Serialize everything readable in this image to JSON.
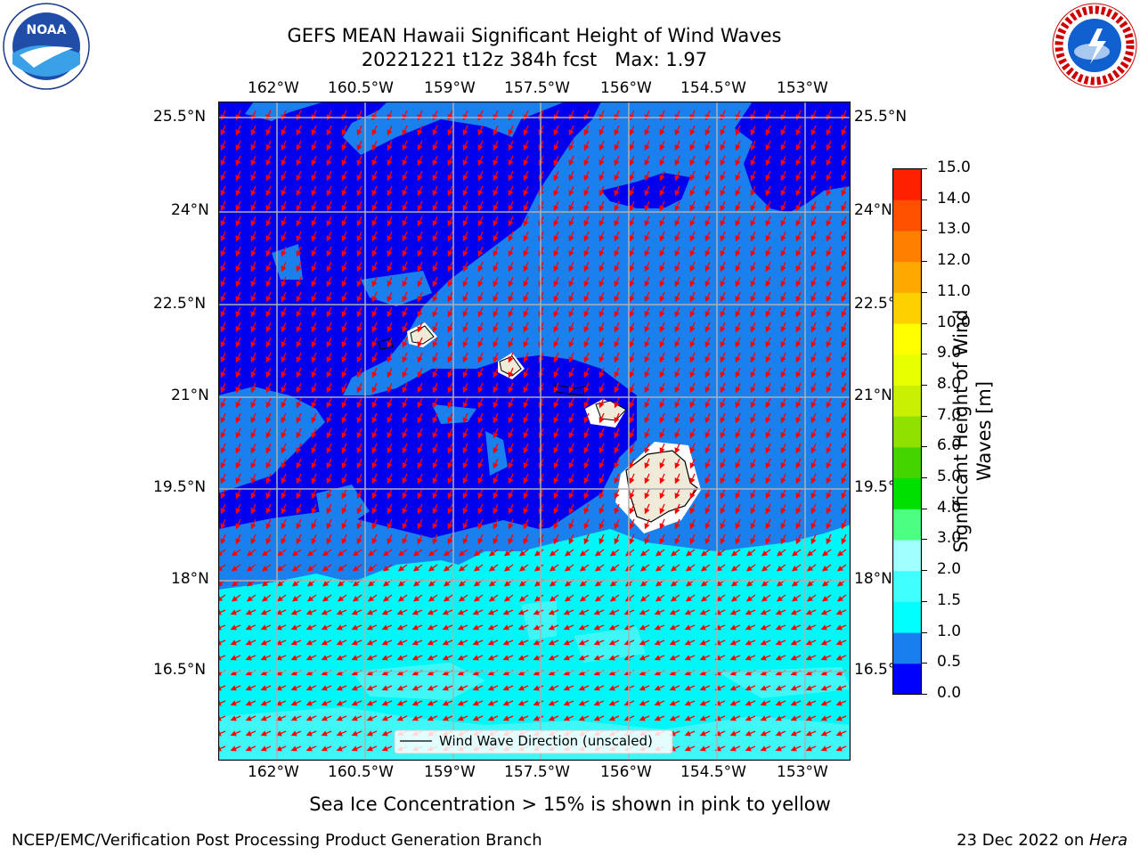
{
  "header": {
    "title_line1": "GEFS MEAN Hawaii Significant Height of Wind Waves",
    "title_line2": "20221221 t12z 384h fcst   Max: 1.97"
  },
  "logos": {
    "left": {
      "icon": "noaa-logo",
      "text": "NOAA",
      "ring_text": "NATIONAL OCEANIC AND ATMOSPHERIC ADMINISTRATION · U.S. DEPARTMENT OF COMMERCE"
    },
    "right": {
      "icon": "nws-logo",
      "ring_text": "NATIONAL WEATHER SERVICE"
    }
  },
  "map": {
    "lon_labels": [
      "162°W",
      "160.5°W",
      "159°W",
      "157.5°W",
      "156°W",
      "154.5°W",
      "153°W"
    ],
    "lat_labels": [
      "25.5°N",
      "24°N",
      "22.5°N",
      "21°N",
      "19.5°N",
      "18°N",
      "16.5°N"
    ],
    "legend_label": "Wind Wave Direction (unscaled)",
    "colors": {
      "deep": "#0000ee",
      "mid": "#1a80ee",
      "cyan1": "#00f7f7",
      "cyan2": "#40f7f7",
      "arrow": "#ff0000",
      "land": "#f0ebd8"
    }
  },
  "colorbar": {
    "label": "Significant Height of Wind Waves [m]",
    "ticks": [
      "0.0",
      "0.5",
      "1.0",
      "1.5",
      "2.0",
      "3.0",
      "4.0",
      "5.0",
      "6.0",
      "7.0",
      "8.0",
      "9.0",
      "10.0",
      "11.0",
      "12.0",
      "13.0",
      "14.0",
      "15.0"
    ],
    "colors": [
      "#0000ff",
      "#1a7fee",
      "#00ffff",
      "#40ffff",
      "#a0ffff",
      "#4cff80",
      "#00e000",
      "#44d400",
      "#90e000",
      "#c8f000",
      "#e8ff00",
      "#ffff00",
      "#ffd000",
      "#ffa800",
      "#ff8000",
      "#ff5000",
      "#ff2000"
    ]
  },
  "footer": {
    "note": "Sea Ice Concentration > 15% is shown in pink to yellow",
    "left": "NCEP/EMC/Verification Post Processing Product Generation Branch",
    "date": "23 Dec 2022 on ",
    "machine": "Hera"
  }
}
